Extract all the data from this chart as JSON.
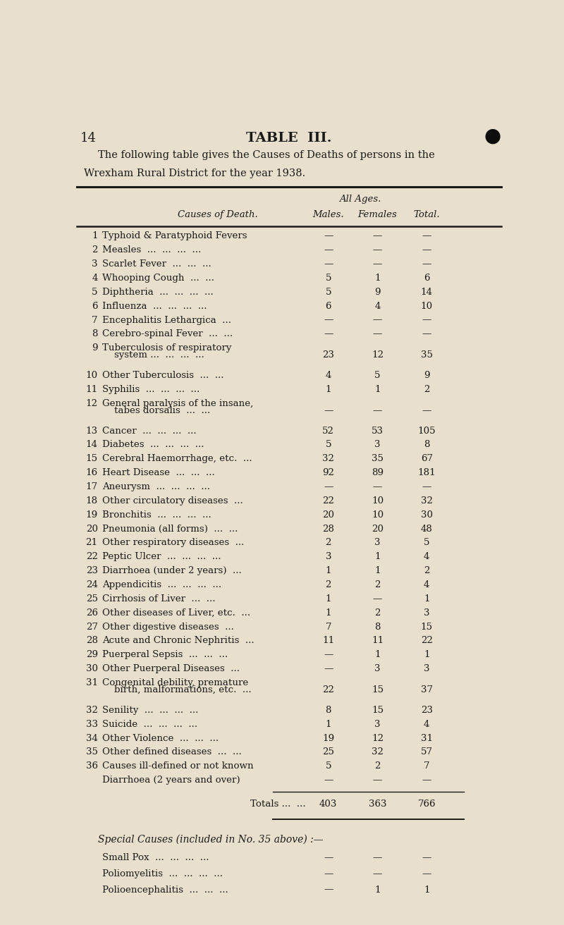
{
  "page_number": "14",
  "title": "TABLE  III.",
  "subtitle_line1": "The following table gives the Causes of Deaths of persons in the",
  "subtitle_line2": "Wrexham Rural District for the year 1938.",
  "col_header_span": "All Ages.",
  "col1_header": "Causes of Death.",
  "col2_header": "Males.",
  "col3_header": "Females",
  "col4_header": "Total.",
  "rows": [
    {
      "num": "1",
      "cause": "Typhoid & Paratyphoid Fevers",
      "cause2": "",
      "males": "—",
      "females": "—",
      "total": "—"
    },
    {
      "num": "2",
      "cause": "Measles  ...  ...  ...  ...",
      "cause2": "",
      "males": "—",
      "females": "—",
      "total": "—"
    },
    {
      "num": "3",
      "cause": "Scarlet Fever  ...  ...  ...",
      "cause2": "",
      "males": "—",
      "females": "—",
      "total": "—"
    },
    {
      "num": "4",
      "cause": "Whooping Cough  ...  ...",
      "cause2": "",
      "males": "5",
      "females": "1",
      "total": "6"
    },
    {
      "num": "5",
      "cause": "Diphtheria  ...  ...  ...  ...",
      "cause2": "",
      "males": "5",
      "females": "9",
      "total": "14"
    },
    {
      "num": "6",
      "cause": "Influenza  ...  ...  ...  ...",
      "cause2": "",
      "males": "6",
      "females": "4",
      "total": "10"
    },
    {
      "num": "7",
      "cause": "Encephalitis Lethargica  ...",
      "cause2": "",
      "males": "—",
      "females": "—",
      "total": "—"
    },
    {
      "num": "8",
      "cause": "Cerebro-spinal Fever  ...  ...",
      "cause2": "",
      "males": "—",
      "females": "—",
      "total": "—"
    },
    {
      "num": "9",
      "cause": "Tuberculosis of respiratory",
      "cause2": "    system ...  ...  ...  ...",
      "males": "23",
      "females": "12",
      "total": "35"
    },
    {
      "num": "10",
      "cause": "Other Tuberculosis  ...  ...",
      "cause2": "",
      "males": "4",
      "females": "5",
      "total": "9"
    },
    {
      "num": "11",
      "cause": "Syphilis  ...  ...  ...  ...",
      "cause2": "",
      "males": "1",
      "females": "1",
      "total": "2"
    },
    {
      "num": "12",
      "cause": "General paralysis of the insane,",
      "cause2": "    tabes dorsalis  ...  ...",
      "males": "—",
      "females": "—",
      "total": "—"
    },
    {
      "num": "13",
      "cause": "Cancer  ...  ...  ...  ...",
      "cause2": "",
      "males": "52",
      "females": "53",
      "total": "105"
    },
    {
      "num": "14",
      "cause": "Diabetes  ...  ...  ...  ...",
      "cause2": "",
      "males": "5",
      "females": "3",
      "total": "8"
    },
    {
      "num": "15",
      "cause": "Cerebral Haemorrhage, etc.  ...",
      "cause2": "",
      "males": "32",
      "females": "35",
      "total": "67"
    },
    {
      "num": "16",
      "cause": "Heart Disease  ...  ...  ...",
      "cause2": "",
      "males": "92",
      "females": "89",
      "total": "181"
    },
    {
      "num": "17",
      "cause": "Aneurysm  ...  ...  ...  ...",
      "cause2": "",
      "males": "—",
      "females": "—",
      "total": "—"
    },
    {
      "num": "18",
      "cause": "Other circulatory diseases  ...",
      "cause2": "",
      "males": "22",
      "females": "10",
      "total": "32"
    },
    {
      "num": "19",
      "cause": "Bronchitis  ...  ...  ...  ...",
      "cause2": "",
      "males": "20",
      "females": "10",
      "total": "30"
    },
    {
      "num": "20",
      "cause": "Pneumonia (all forms)  ...  ...",
      "cause2": "",
      "males": "28",
      "females": "20",
      "total": "48"
    },
    {
      "num": "21",
      "cause": "Other respiratory diseases  ...",
      "cause2": "",
      "males": "2",
      "females": "3",
      "total": "5"
    },
    {
      "num": "22",
      "cause": "Peptic Ulcer  ...  ...  ...  ...",
      "cause2": "",
      "males": "3",
      "females": "1",
      "total": "4"
    },
    {
      "num": "23",
      "cause": "Diarrhoea (under 2 years)  ...",
      "cause2": "",
      "males": "1",
      "females": "1",
      "total": "2"
    },
    {
      "num": "24",
      "cause": "Appendicitis  ...  ...  ...  ...",
      "cause2": "",
      "males": "2",
      "females": "2",
      "total": "4"
    },
    {
      "num": "25",
      "cause": "Cirrhosis of Liver  ...  ...",
      "cause2": "",
      "males": "1",
      "females": "—",
      "total": "1"
    },
    {
      "num": "26",
      "cause": "Other diseases of Liver, etc.  ...",
      "cause2": "",
      "males": "1",
      "females": "2",
      "total": "3"
    },
    {
      "num": "27",
      "cause": "Other digestive diseases  ...",
      "cause2": "",
      "males": "7",
      "females": "8",
      "total": "15"
    },
    {
      "num": "28",
      "cause": "Acute and Chronic Nephritis  ...",
      "cause2": "",
      "males": "11",
      "females": "11",
      "total": "22"
    },
    {
      "num": "29",
      "cause": "Puerperal Sepsis  ...  ...  ...",
      "cause2": "",
      "males": "—",
      "females": "1",
      "total": "1"
    },
    {
      "num": "30",
      "cause": "Other Puerperal Diseases  ...",
      "cause2": "",
      "males": "—",
      "females": "3",
      "total": "3"
    },
    {
      "num": "31",
      "cause": "Congenital debility, premature",
      "cause2": "    birth, malformations, etc.  ...",
      "males": "22",
      "females": "15",
      "total": "37"
    },
    {
      "num": "32",
      "cause": "Senility  ...  ...  ...  ...",
      "cause2": "",
      "males": "8",
      "females": "15",
      "total": "23"
    },
    {
      "num": "33",
      "cause": "Suicide  ...  ...  ...  ...",
      "cause2": "",
      "males": "1",
      "females": "3",
      "total": "4"
    },
    {
      "num": "34",
      "cause": "Other Violence  ...  ...  ...",
      "cause2": "",
      "males": "19",
      "females": "12",
      "total": "31"
    },
    {
      "num": "35",
      "cause": "Other defined diseases  ...  ...",
      "cause2": "",
      "males": "25",
      "females": "32",
      "total": "57"
    },
    {
      "num": "36",
      "cause": "Causes ill-defined or not known",
      "cause2": "",
      "males": "5",
      "females": "2",
      "total": "7"
    },
    {
      "num": "",
      "cause": "Diarrhoea (2 years and over)",
      "cause2": "",
      "males": "—",
      "females": "—",
      "total": "—"
    }
  ],
  "totals_label": "Totals ...  ...",
  "totals_males": "403",
  "totals_females": "363",
  "totals_total": "766",
  "special_header": "Special Causes (included in No. 35 above) :—",
  "special_rows": [
    {
      "cause": "Small Pox  ...  ...  ...  ...",
      "males": "—",
      "females": "—",
      "total": "—"
    },
    {
      "cause": "Poliomyelitis  ...  ...  ...  ...",
      "males": "—",
      "females": "—",
      "total": "—"
    },
    {
      "cause": "Polioencephalitis  ...  ...  ...",
      "males": "—",
      "females": "1",
      "total": "1"
    }
  ],
  "bg_color": "#e8e0cc",
  "text_color": "#1a1a1a",
  "font_family": "serif"
}
